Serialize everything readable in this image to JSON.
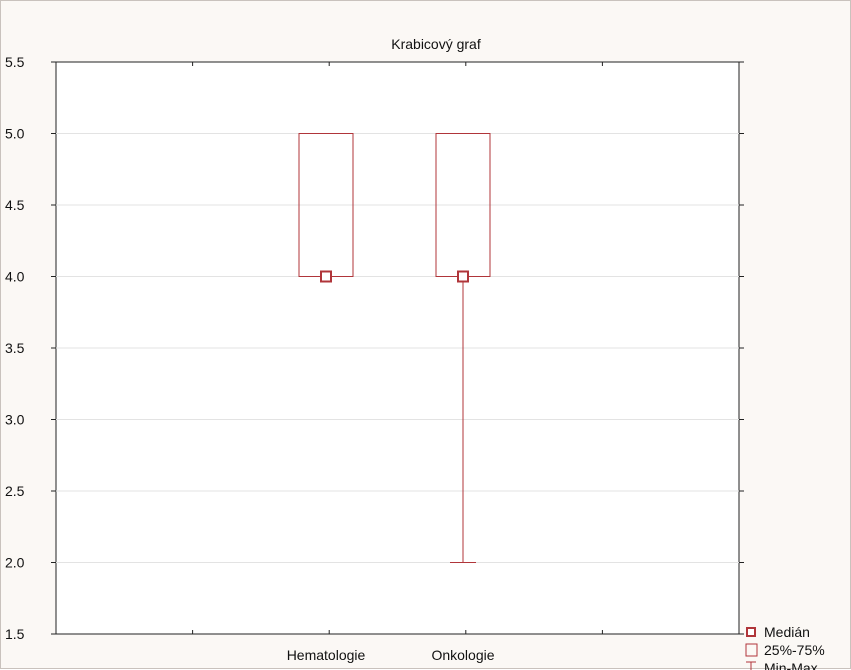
{
  "chart_data": {
    "type": "box",
    "title": "Krabicový graf",
    "xlabel": "",
    "ylabel": "",
    "categories": [
      "Hematologie",
      "Onkologie"
    ],
    "boxes": [
      {
        "category": "Hematologie",
        "min": 4.0,
        "q1": 4.0,
        "median": 4.0,
        "q3": 5.0,
        "max": 5.0
      },
      {
        "category": "Onkologie",
        "min": 2.0,
        "q1": 4.0,
        "median": 4.0,
        "q3": 5.0,
        "max": 5.0
      }
    ],
    "ylim": [
      1.5,
      5.5
    ],
    "yticks": [
      "5.5",
      "5.0",
      "4.5",
      "4.0",
      "3.5",
      "3.0",
      "2.5",
      "2.0",
      "1.5"
    ],
    "grid": true,
    "legend_position": "bottom-right",
    "legend": [
      {
        "label": "Medián",
        "symbol": "square-marker"
      },
      {
        "label": "25%-75%",
        "symbol": "box"
      },
      {
        "label": "Min-Max",
        "symbol": "whisker"
      }
    ],
    "colors": {
      "box": "#b0353a",
      "grid": "#e3e3e3",
      "background": "#fbf8f5",
      "plot_background": "#ffffff",
      "frame": "#c9c2bd"
    }
  }
}
